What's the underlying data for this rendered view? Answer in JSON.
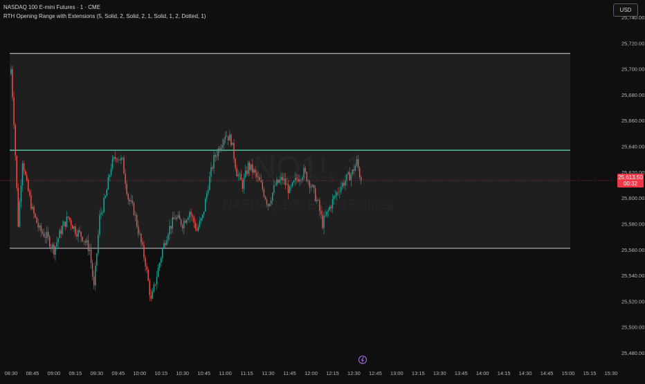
{
  "header": {
    "symbol_title": "NASDAQ 100 E-mini Futures · 1 · CME",
    "indicator_title": "RTH Opening Range with Extensions (5, Solid, 2, Solid, 2, 1, Solid, 1, 2, Dotted, 1)",
    "currency_button": "USD"
  },
  "watermark": {
    "ticker": "NQ1!, 1",
    "name": "NASDAQ 100 E-mini Futures"
  },
  "last_price": {
    "value": "25,613.50",
    "countdown": "00:32",
    "numeric": 25613.5,
    "color": "#f23645"
  },
  "colors": {
    "background": "#0f0f0f",
    "range_fill": "#1f1f1f",
    "range_lines": "#d1d4dc",
    "midline": "#5ee3c3",
    "up_candle": "#26a69a",
    "down_candle": "#ef5350",
    "last_price_line": "#f23645",
    "dividend_icon": "#b36ef0"
  },
  "chart_data": {
    "type": "candlestick",
    "y_axis": {
      "min": 25480,
      "max": 25740,
      "ticks": [
        "25,740.00",
        "25,720.00",
        "25,700.00",
        "25,680.00",
        "25,660.00",
        "25,640.00",
        "25,620.00",
        "25,600.00",
        "25,580.00",
        "25,560.00",
        "25,540.00",
        "25,520.00",
        "25,500.00",
        "25,480.00"
      ]
    },
    "x_axis": {
      "ticks": [
        "08:30",
        "08:45",
        "09:00",
        "09:15",
        "09:30",
        "09:45",
        "10:00",
        "10:15",
        "10:30",
        "10:45",
        "11:00",
        "11:15",
        "11:30",
        "11:45",
        "12:00",
        "12:15",
        "12:30",
        "12:45",
        "13:00",
        "13:15",
        "13:30",
        "13:45",
        "14:00",
        "14:15",
        "14:30",
        "14:45",
        "15:00",
        "15:15",
        "15:30"
      ]
    },
    "opening_range": {
      "high": 25712,
      "low": 25561,
      "mid": 25637
    },
    "price_path": [
      {
        "t": "08:30",
        "p": 25700
      },
      {
        "t": "08:32",
        "p": 25660
      },
      {
        "t": "08:35",
        "p": 25580
      },
      {
        "t": "08:38",
        "p": 25630
      },
      {
        "t": "08:41",
        "p": 25610
      },
      {
        "t": "08:45",
        "p": 25590
      },
      {
        "t": "08:50",
        "p": 25575
      },
      {
        "t": "08:55",
        "p": 25570
      },
      {
        "t": "09:00",
        "p": 25560
      },
      {
        "t": "09:05",
        "p": 25575
      },
      {
        "t": "09:10",
        "p": 25585
      },
      {
        "t": "09:15",
        "p": 25575
      },
      {
        "t": "09:20",
        "p": 25570
      },
      {
        "t": "09:25",
        "p": 25560
      },
      {
        "t": "09:28",
        "p": 25530
      },
      {
        "t": "09:32",
        "p": 25585
      },
      {
        "t": "09:36",
        "p": 25600
      },
      {
        "t": "09:40",
        "p": 25625
      },
      {
        "t": "09:44",
        "p": 25633
      },
      {
        "t": "09:48",
        "p": 25628
      },
      {
        "t": "09:52",
        "p": 25600
      },
      {
        "t": "09:56",
        "p": 25590
      },
      {
        "t": "10:00",
        "p": 25570
      },
      {
        "t": "10:04",
        "p": 25550
      },
      {
        "t": "10:08",
        "p": 25520
      },
      {
        "t": "10:12",
        "p": 25540
      },
      {
        "t": "10:16",
        "p": 25560
      },
      {
        "t": "10:20",
        "p": 25575
      },
      {
        "t": "10:25",
        "p": 25585
      },
      {
        "t": "10:30",
        "p": 25580
      },
      {
        "t": "10:35",
        "p": 25590
      },
      {
        "t": "10:40",
        "p": 25575
      },
      {
        "t": "10:44",
        "p": 25585
      },
      {
        "t": "10:48",
        "p": 25610
      },
      {
        "t": "10:52",
        "p": 25630
      },
      {
        "t": "10:56",
        "p": 25640
      },
      {
        "t": "11:00",
        "p": 25650
      },
      {
        "t": "11:04",
        "p": 25645
      },
      {
        "t": "11:08",
        "p": 25620
      },
      {
        "t": "11:12",
        "p": 25610
      },
      {
        "t": "11:16",
        "p": 25625
      },
      {
        "t": "11:20",
        "p": 25620
      },
      {
        "t": "11:25",
        "p": 25610
      },
      {
        "t": "11:30",
        "p": 25595
      },
      {
        "t": "11:35",
        "p": 25610
      },
      {
        "t": "11:40",
        "p": 25615
      },
      {
        "t": "11:45",
        "p": 25605
      },
      {
        "t": "11:50",
        "p": 25615
      },
      {
        "t": "11:55",
        "p": 25620
      },
      {
        "t": "12:00",
        "p": 25610
      },
      {
        "t": "12:05",
        "p": 25595
      },
      {
        "t": "12:08",
        "p": 25580
      },
      {
        "t": "12:12",
        "p": 25590
      },
      {
        "t": "12:16",
        "p": 25600
      },
      {
        "t": "12:20",
        "p": 25608
      },
      {
        "t": "12:25",
        "p": 25615
      },
      {
        "t": "12:29",
        "p": 25620
      },
      {
        "t": "12:32",
        "p": 25628
      },
      {
        "t": "12:35",
        "p": 25613.5
      }
    ]
  }
}
